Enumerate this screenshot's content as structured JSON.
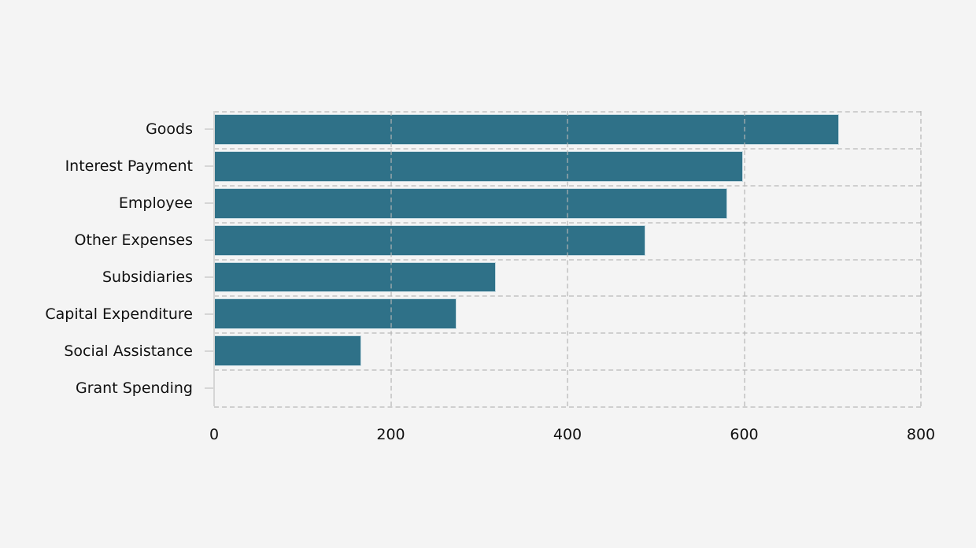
{
  "chart_data": {
    "type": "bar",
    "orientation": "horizontal",
    "title": "",
    "xlabel": "",
    "ylabel": "",
    "categories": [
      "Goods",
      "Interest Payment",
      "Employee",
      "Other Expenses",
      "Subsidiaries",
      "Capital Expenditure",
      "Social Assistance",
      "Grant Spending"
    ],
    "values": [
      707,
      599,
      581,
      488,
      319,
      274,
      167,
      0
    ],
    "xlim": [
      0,
      800
    ],
    "xticks": [
      "0",
      "200",
      "400",
      "600",
      "800"
    ],
    "grid": true,
    "legend": null,
    "bar_color": "#2f7188"
  }
}
